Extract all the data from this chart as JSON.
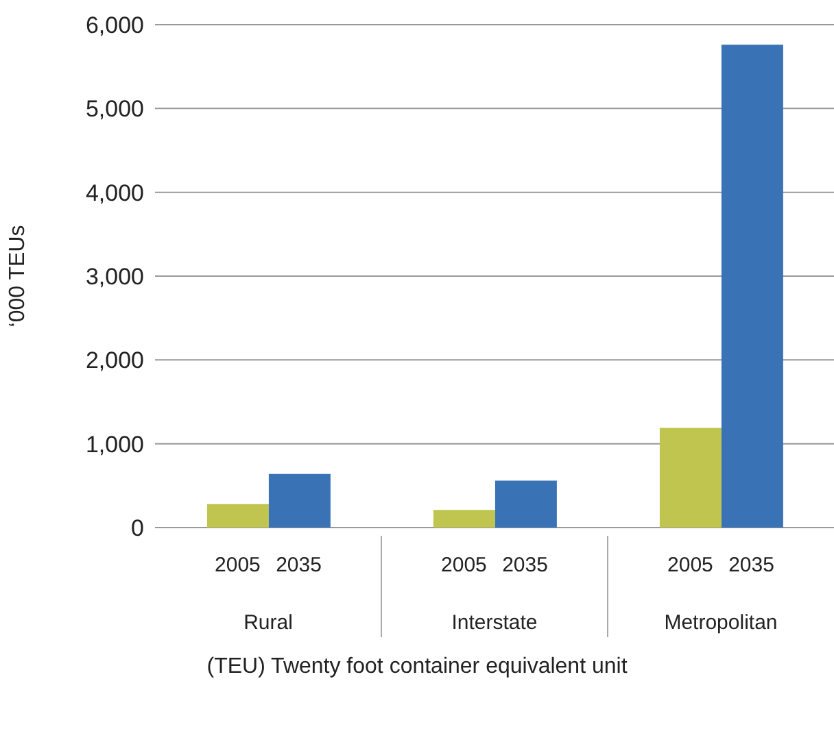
{
  "chart_data": {
    "type": "bar",
    "ylabel": "‘000 TEUs",
    "categories": [
      "Rural",
      "Interstate",
      "Metropolitan"
    ],
    "series": [
      {
        "name": "2005",
        "color": "#bfc54e",
        "values": [
          280,
          210,
          1190
        ]
      },
      {
        "name": "2035",
        "color": "#3a73b5",
        "values": [
          640,
          560,
          5760
        ]
      }
    ],
    "ylim": [
      0,
      6000
    ],
    "yticks": [
      0,
      {
        "value": 1000,
        "label": "1,000"
      },
      {
        "value": 2000,
        "label": "2,000"
      },
      {
        "value": 3000,
        "label": "3,000"
      },
      {
        "value": 4000,
        "label": "4,000"
      },
      {
        "value": 5000,
        "label": "5,000"
      },
      {
        "value": 6000,
        "label": "6,000"
      }
    ],
    "grid": "y",
    "legend": false,
    "annotations": [
      "(TEU) Twenty foot container equivalent unit"
    ]
  }
}
